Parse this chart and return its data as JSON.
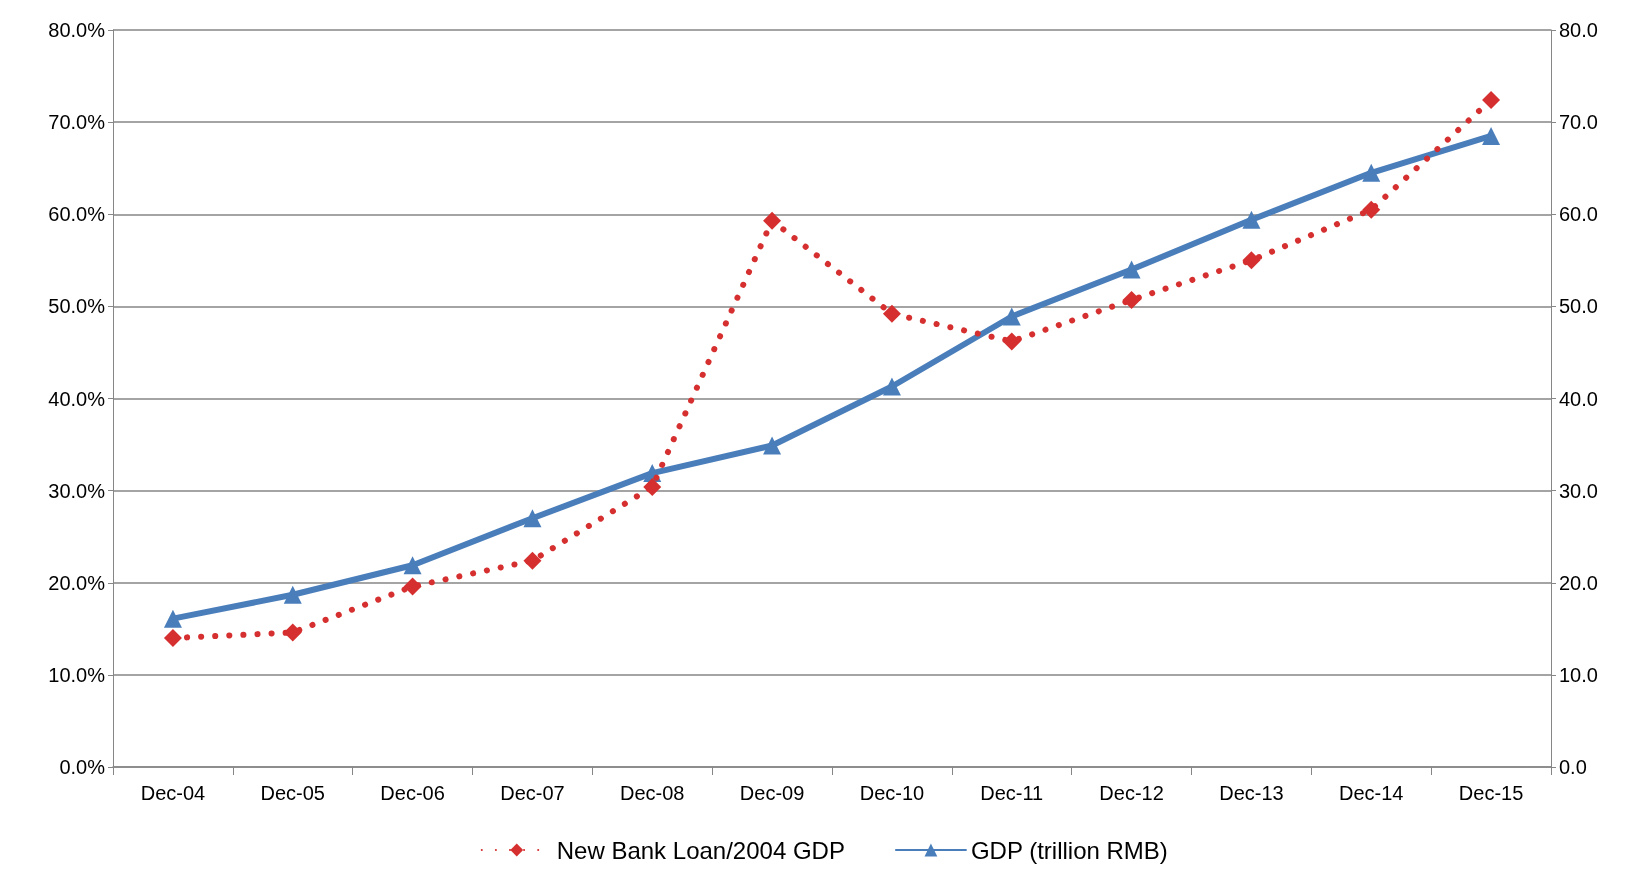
{
  "chart_data": {
    "type": "line",
    "categories": [
      "Dec-04",
      "Dec-05",
      "Dec-06",
      "Dec-07",
      "Dec-08",
      "Dec-09",
      "Dec-10",
      "Dec-11",
      "Dec-12",
      "Dec-13",
      "Dec-14",
      "Dec-15"
    ],
    "series": [
      {
        "name": "New Bank Loan/2004 GDP",
        "color": "#d62f2f",
        "marker": "diamond",
        "line_style": "dotted",
        "values": [
          14.0,
          14.6,
          19.6,
          22.4,
          30.4,
          59.3,
          49.2,
          46.2,
          50.7,
          55.0,
          60.5,
          72.4
        ]
      },
      {
        "name": "GDP (trillion RMB)",
        "color": "#4a7ebb",
        "marker": "triangle",
        "line_style": "solid",
        "axis": "y2",
        "values": [
          16.1,
          18.7,
          21.9,
          27.0,
          31.9,
          34.9,
          41.3,
          48.9,
          54.0,
          59.4,
          64.5,
          68.5
        ]
      }
    ],
    "ylim": [
      0,
      80
    ],
    "yticks": [
      {
        "value": 0,
        "label": "0.0%"
      },
      {
        "value": 10,
        "label": "10.0%"
      },
      {
        "value": 20,
        "label": "20.0%"
      },
      {
        "value": 30,
        "label": "30.0%"
      },
      {
        "value": 40,
        "label": "40.0%"
      },
      {
        "value": 50,
        "label": "50.0%"
      },
      {
        "value": 60,
        "label": "60.0%"
      },
      {
        "value": 70,
        "label": "70.0%"
      },
      {
        "value": 80,
        "label": "80.0%"
      }
    ],
    "y2lim": [
      0,
      80
    ],
    "y2ticks": [
      {
        "value": 0,
        "label": "0.0"
      },
      {
        "value": 10,
        "label": "10.0"
      },
      {
        "value": 20,
        "label": "20.0"
      },
      {
        "value": 30,
        "label": "30.0"
      },
      {
        "value": 40,
        "label": "40.0"
      },
      {
        "value": 50,
        "label": "50.0"
      },
      {
        "value": 60,
        "label": "60.0"
      },
      {
        "value": 70,
        "label": "70.0"
      },
      {
        "value": 80,
        "label": "80.0"
      }
    ],
    "grid": "y",
    "legend": "bottom"
  }
}
